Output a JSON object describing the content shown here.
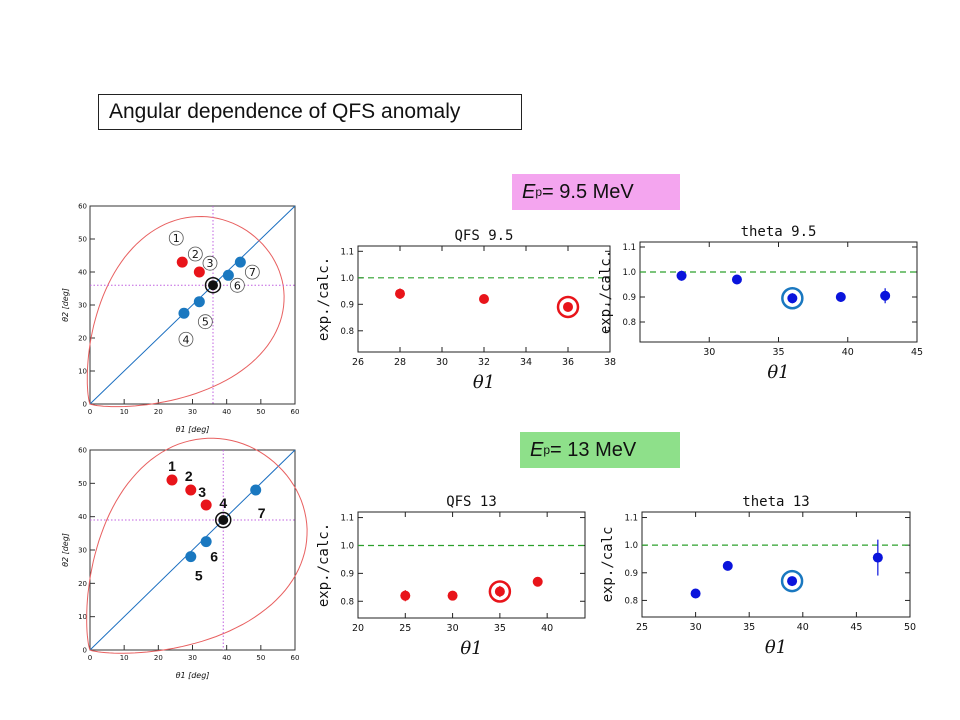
{
  "title": "Angular dependence of QFS anomaly",
  "energy_top": {
    "E": "E",
    "sub": "p",
    "rest": "= 9.5 MeV"
  },
  "energy_bottom": {
    "E": "E",
    "sub": "p",
    "rest": "= 13 MeV"
  },
  "colors": {
    "red": "#e8141a",
    "blue": "#0a14dc",
    "steel": "#1a78c0",
    "green_dash": "#2ca02c",
    "kin_curve": "#e86060",
    "diag": "#1a6ec0",
    "magenta_dot": "#c060e0"
  },
  "chart_data": [
    {
      "id": "kin95",
      "type": "scatter",
      "xlabel": "θ1 [deg]",
      "ylabel": "θ2 [deg]",
      "xlim": [
        0,
        60
      ],
      "ylim": [
        0,
        60
      ],
      "xticks": [
        "0",
        "10",
        "20",
        "30",
        "40",
        "50",
        "60"
      ],
      "yticks": [
        "0",
        "10",
        "20",
        "30",
        "40",
        "50",
        "60"
      ],
      "crosshair": [
        36,
        36
      ],
      "selected": [
        36,
        36
      ],
      "points": [
        {
          "label": "1",
          "x": 27,
          "y": 43,
          "color": "red"
        },
        {
          "label": "2",
          "x": 32,
          "y": 40,
          "color": "red"
        },
        {
          "label": "3",
          "x": 36,
          "y": 36,
          "color": "black"
        },
        {
          "label": "4",
          "x": 27.5,
          "y": 27.5,
          "color": "steel"
        },
        {
          "label": "5",
          "x": 32,
          "y": 31,
          "color": "steel"
        },
        {
          "label": "6",
          "x": 40.5,
          "y": 39,
          "color": "steel"
        },
        {
          "label": "7",
          "x": 44,
          "y": 43,
          "color": "steel"
        }
      ]
    },
    {
      "id": "kin13",
      "type": "scatter",
      "xlabel": "θ1 [deg]",
      "ylabel": "θ2 [deg]",
      "xlim": [
        0,
        60
      ],
      "ylim": [
        0,
        60
      ],
      "xticks": [
        "0",
        "10",
        "20",
        "30",
        "40",
        "50",
        "60"
      ],
      "yticks": [
        "0",
        "10",
        "20",
        "30",
        "40",
        "50",
        "60"
      ],
      "crosshair": [
        39,
        39
      ],
      "selected": [
        39,
        39
      ],
      "points": [
        {
          "label": "1",
          "x": 24,
          "y": 51,
          "color": "red"
        },
        {
          "label": "2",
          "x": 29.5,
          "y": 48,
          "color": "red"
        },
        {
          "label": "3",
          "x": 34,
          "y": 43.5,
          "color": "red"
        },
        {
          "label": "4",
          "x": 39,
          "y": 39,
          "color": "black"
        },
        {
          "label": "5",
          "x": 29.5,
          "y": 28,
          "color": "steel"
        },
        {
          "label": "6",
          "x": 34,
          "y": 32.5,
          "color": "steel"
        },
        {
          "label": "7",
          "x": 48.5,
          "y": 48,
          "color": "steel"
        }
      ]
    },
    {
      "id": "qfs95",
      "type": "scatter",
      "title": "QFS 9.5",
      "xlabel": "θ1",
      "ylabel": "exp./calc.",
      "xlim": [
        26,
        38
      ],
      "ylim": [
        0.72,
        1.12
      ],
      "xticks": [
        "26",
        "28",
        "30",
        "32",
        "34",
        "36",
        "38"
      ],
      "yticks": [
        "0.8",
        "0.9",
        "1.0",
        "1.1"
      ],
      "reference": 1.0,
      "color": "red",
      "points": [
        {
          "x": 28,
          "y": 0.94,
          "err": 0.02
        },
        {
          "x": 32,
          "y": 0.92,
          "err": 0.015
        },
        {
          "x": 36,
          "y": 0.89,
          "err": 0.01,
          "circled": true
        }
      ]
    },
    {
      "id": "theta95",
      "type": "scatter",
      "title": "theta 9.5",
      "xlabel": "θ1",
      "ylabel": "exp./calc.",
      "xlim": [
        25,
        45
      ],
      "ylim": [
        0.72,
        1.12
      ],
      "xticks": [
        "30",
        "35",
        "40",
        "45"
      ],
      "yticks": [
        "0.8",
        "0.9",
        "1.0",
        "1.1"
      ],
      "reference": 1.0,
      "color": "blue",
      "points": [
        {
          "x": 28,
          "y": 0.985,
          "err": 0.02
        },
        {
          "x": 32,
          "y": 0.97,
          "err": 0.01
        },
        {
          "x": 36,
          "y": 0.895,
          "err": 0.02,
          "circled": true
        },
        {
          "x": 39.5,
          "y": 0.9,
          "err": 0.02
        },
        {
          "x": 42.7,
          "y": 0.905,
          "err": 0.03
        }
      ]
    },
    {
      "id": "qfs13",
      "type": "scatter",
      "title": "QFS 13",
      "xlabel": "θ1",
      "ylabel": "exp./calc.",
      "xlim": [
        20,
        44
      ],
      "ylim": [
        0.74,
        1.12
      ],
      "xticks": [
        "20",
        "25",
        "30",
        "35",
        "40"
      ],
      "yticks": [
        "0.8",
        "0.9",
        "1.0",
        "1.1"
      ],
      "reference": 1.0,
      "color": "red",
      "points": [
        {
          "x": 25,
          "y": 0.82,
          "err": 0.02
        },
        {
          "x": 30,
          "y": 0.82,
          "err": 0.01
        },
        {
          "x": 35,
          "y": 0.835,
          "err": 0.02,
          "circled": true
        },
        {
          "x": 39,
          "y": 0.87,
          "err": 0.01
        }
      ]
    },
    {
      "id": "theta13",
      "type": "scatter",
      "title": "theta 13",
      "xlabel": "θ1",
      "ylabel": "exp./calc",
      "xlim": [
        25,
        50
      ],
      "ylim": [
        0.74,
        1.12
      ],
      "xticks": [
        "25",
        "30",
        "35",
        "40",
        "45",
        "50"
      ],
      "yticks": [
        "0.8",
        "0.9",
        "1.0",
        "1.1"
      ],
      "reference": 1.0,
      "color": "blue",
      "points": [
        {
          "x": 30,
          "y": 0.825,
          "err": 0.01
        },
        {
          "x": 33,
          "y": 0.925,
          "err": 0.01
        },
        {
          "x": 39,
          "y": 0.87,
          "err": 0.01,
          "circled": true
        },
        {
          "x": 47,
          "y": 0.955,
          "err": 0.065
        }
      ]
    }
  ]
}
